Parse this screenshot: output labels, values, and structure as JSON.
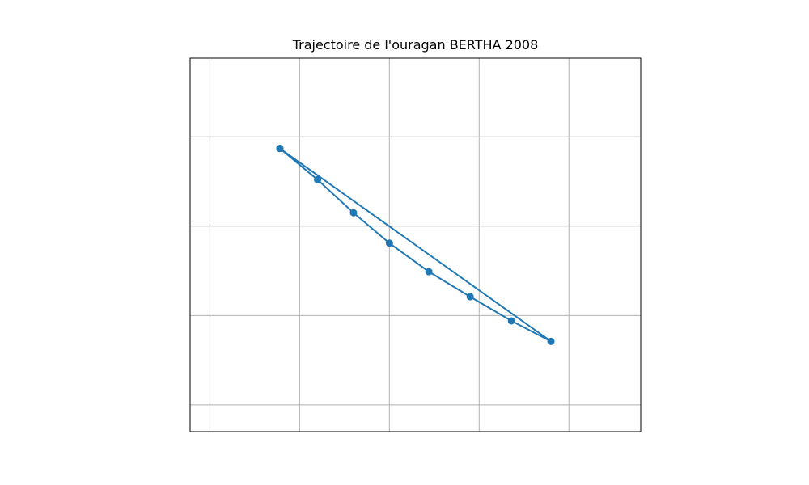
{
  "chart_data": {
    "type": "line",
    "title": "Trajectoire de l'ouragan BERTHA 2008",
    "xlabel": "",
    "ylabel": "",
    "grid": true,
    "show_markers": true,
    "series_color": "#1f77b4",
    "x_gridlines": [
      0,
      1,
      2,
      3,
      4
    ],
    "y_gridlines": [
      0,
      1,
      2,
      3
    ],
    "xlim": [
      -0.22,
      4.8
    ],
    "ylim": [
      -0.3,
      3.88
    ],
    "series": [
      {
        "x": [
          0.78,
          1.2,
          1.6,
          2.0,
          2.44,
          2.9,
          3.36,
          3.8,
          0.78
        ],
        "y": [
          2.87,
          2.52,
          2.15,
          1.81,
          1.49,
          1.21,
          0.94,
          0.71,
          2.87
        ]
      }
    ]
  }
}
